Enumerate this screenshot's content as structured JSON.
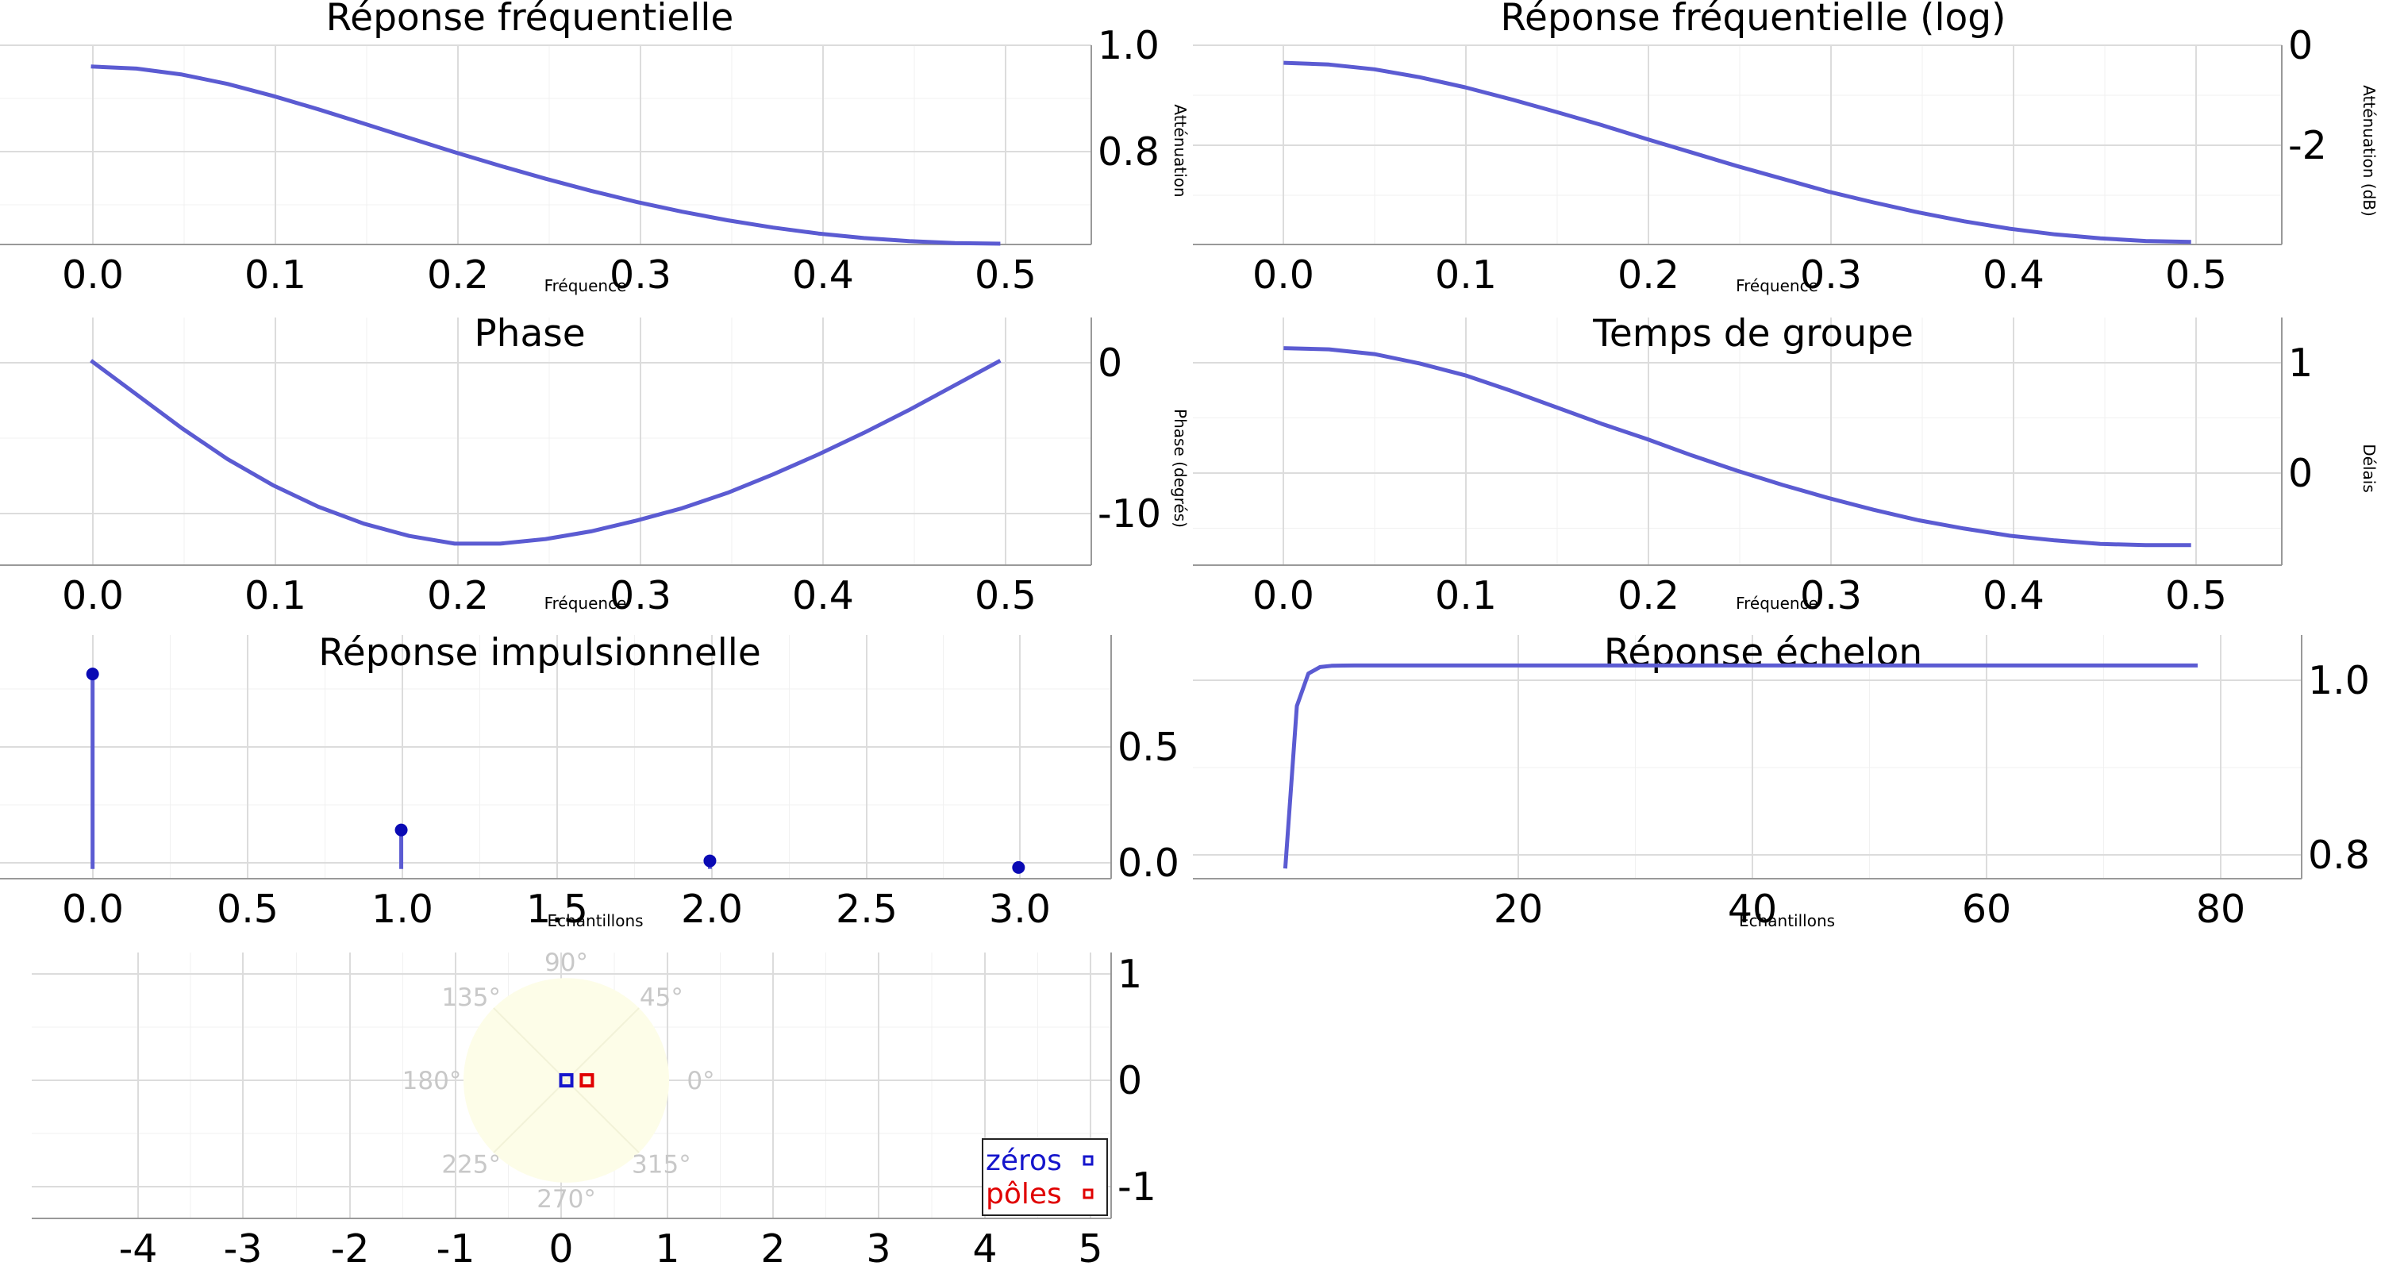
{
  "chart_data": [
    {
      "id": "freq",
      "type": "line",
      "title": "Réponse fréquentielle",
      "xlabel": "Fréquence",
      "ylabel": "Atténuation",
      "xlim": [
        -0.05,
        0.55
      ],
      "ylim": [
        0.623,
        1.045
      ],
      "x_ticks": [
        "0.0",
        "0.1",
        "0.2",
        "0.3",
        "0.4",
        "0.5"
      ],
      "y_ticks": [
        "1.0",
        "0.8"
      ],
      "series": [
        {
          "x": [
            0.0,
            0.025,
            0.05,
            0.075,
            0.1,
            0.125,
            0.15,
            0.175,
            0.2,
            0.225,
            0.25,
            0.275,
            0.3,
            0.325,
            0.35,
            0.375,
            0.4,
            0.425,
            0.45,
            0.475,
            0.5
          ],
          "values": [
            1.0,
            0.9956,
            0.9829,
            0.9631,
            0.9378,
            0.9093,
            0.8792,
            0.8487,
            0.8185,
            0.7896,
            0.7622,
            0.7367,
            0.7132,
            0.6924,
            0.6743,
            0.6588,
            0.6462,
            0.6366,
            0.63,
            0.6261,
            0.6247
          ]
        }
      ]
    },
    {
      "id": "freqlog",
      "type": "line",
      "title": "Réponse fréquentielle (log)",
      "xlabel": "Fréquence",
      "ylabel": "Atténuation (dB)",
      "xlim": [
        -0.05,
        0.55
      ],
      "ylim": [
        -4.15,
        0.4
      ],
      "x_ticks": [
        "0.0",
        "0.1",
        "0.2",
        "0.3",
        "0.4",
        "0.5"
      ],
      "y_ticks": [
        "0",
        "-2"
      ],
      "series": [
        {
          "x": [
            0.0,
            0.025,
            0.05,
            0.075,
            0.1,
            0.125,
            0.15,
            0.175,
            0.2,
            0.225,
            0.25,
            0.275,
            0.3,
            0.325,
            0.35,
            0.375,
            0.4,
            0.425,
            0.45,
            0.475,
            0.5
          ],
          "values": [
            0.0,
            -0.04,
            -0.15,
            -0.33,
            -0.56,
            -0.83,
            -1.12,
            -1.42,
            -1.74,
            -2.05,
            -2.36,
            -2.65,
            -2.94,
            -3.19,
            -3.42,
            -3.62,
            -3.79,
            -3.92,
            -4.01,
            -4.07,
            -4.09
          ]
        }
      ]
    },
    {
      "id": "phase",
      "type": "line",
      "title": "Phase",
      "xlabel": "Fréquence",
      "ylabel": "Phase (degrés)",
      "xlim": [
        -0.05,
        0.55
      ],
      "ylim": [
        -13.3,
        2.8
      ],
      "x_ticks": [
        "0.0",
        "0.1",
        "0.2",
        "0.3",
        "0.4",
        "0.5"
      ],
      "y_ticks": [
        "0",
        "-10"
      ],
      "series": [
        {
          "x": [
            0.0,
            0.025,
            0.05,
            0.075,
            0.1,
            0.125,
            0.15,
            0.175,
            0.2,
            0.225,
            0.25,
            0.275,
            0.3,
            0.325,
            0.35,
            0.375,
            0.4,
            0.425,
            0.45,
            0.475,
            0.5
          ],
          "values": [
            0.0,
            -2.2,
            -4.4,
            -6.4,
            -8.1,
            -9.5,
            -10.6,
            -11.4,
            -11.9,
            -11.9,
            -11.6,
            -11.1,
            -10.4,
            -9.6,
            -8.6,
            -7.4,
            -6.1,
            -4.7,
            -3.2,
            -1.6,
            0.0
          ]
        }
      ]
    },
    {
      "id": "groupdelay",
      "type": "line",
      "title": "Temps de groupe",
      "xlabel": "Fréquence",
      "ylabel": "Délais",
      "xlim": [
        -0.05,
        0.55
      ],
      "ylim": [
        -0.84,
        1.26
      ],
      "x_ticks": [
        "0.0",
        "0.1",
        "0.2",
        "0.3",
        "0.4",
        "0.5"
      ],
      "y_ticks": [
        "1",
        "0"
      ],
      "series": [
        {
          "x": [
            0.0,
            0.025,
            0.05,
            0.075,
            0.1,
            0.125,
            0.15,
            0.175,
            0.2,
            0.225,
            0.25,
            0.275,
            0.3,
            0.325,
            0.35,
            0.375,
            0.4,
            0.425,
            0.45,
            0.475,
            0.5
          ],
          "values": [
            1.0,
            0.99,
            0.95,
            0.87,
            0.77,
            0.64,
            0.5,
            0.36,
            0.23,
            0.09,
            -0.04,
            -0.16,
            -0.27,
            -0.37,
            -0.46,
            -0.53,
            -0.59,
            -0.63,
            -0.66,
            -0.67,
            -0.67
          ]
        }
      ]
    },
    {
      "id": "impulse",
      "type": "stem",
      "title": "Réponse impulsionnelle",
      "xlabel": "Echantillons",
      "ylabel": "",
      "xlim": [
        -0.3,
        3.3
      ],
      "ylim": [
        -0.04,
        0.96
      ],
      "x_ticks": [
        "0.0",
        "0.5",
        "1.0",
        "1.5",
        "2.0",
        "2.5",
        "3.0"
      ],
      "y_ticks": [
        "0.5",
        "0.0"
      ],
      "series": [
        {
          "x": [
            0,
            1,
            2,
            3
          ],
          "values": [
            0.8,
            0.16,
            0.033,
            0.006
          ]
        }
      ]
    },
    {
      "id": "step",
      "type": "line",
      "title": "Réponse échelon",
      "xlabel": "Echantillons",
      "ylabel": "",
      "xlim": [
        -8,
        88
      ],
      "ylim": [
        0.79,
        1.03
      ],
      "x_ticks": [
        "20",
        "40",
        "60",
        "80"
      ],
      "y_ticks": [
        "1.0",
        "0.8"
      ],
      "series": [
        {
          "x": [
            0,
            1,
            2,
            3,
            4,
            5,
            6,
            79
          ],
          "values": [
            0.8,
            0.96,
            0.992,
            0.9984,
            0.9997,
            0.99994,
            1.0,
            1.0
          ]
        }
      ]
    },
    {
      "id": "polezero",
      "type": "scatter",
      "title": "",
      "xlabel": "",
      "ylabel": "",
      "xlim": [
        -5.2,
        5.3
      ],
      "ylim": [
        -1.35,
        1.25
      ],
      "x_ticks": [
        "-4",
        "-3",
        "-2",
        "-1",
        "0",
        "1",
        "2",
        "3",
        "4",
        "5"
      ],
      "y_ticks": [
        "1",
        "0",
        "-1"
      ],
      "polar_labels": [
        "90°",
        "45°",
        "0°",
        "315°",
        "270°",
        "225°",
        "180°",
        "135°"
      ],
      "series": [
        {
          "name": "zéros",
          "color": "#1515cc",
          "points": [
            [
              0,
              0
            ]
          ]
        },
        {
          "name": "pôles",
          "color": "#e00000",
          "points": [
            [
              0.2,
              0
            ]
          ]
        }
      ]
    }
  ]
}
